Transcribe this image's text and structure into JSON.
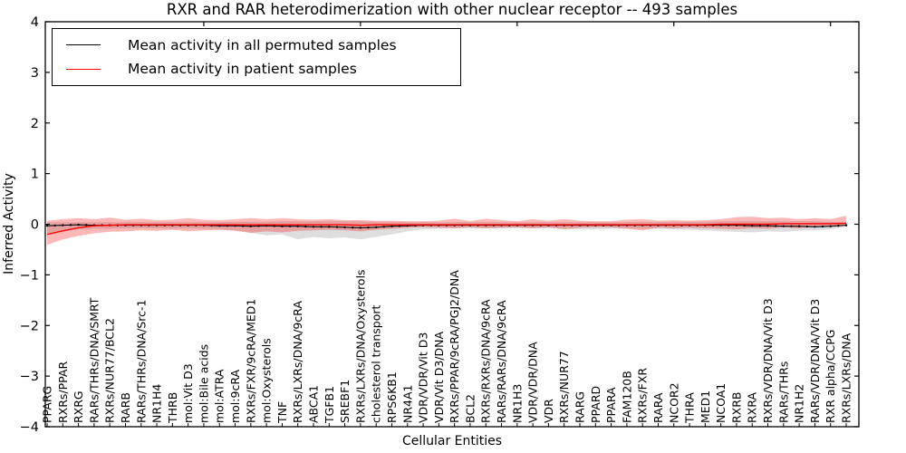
{
  "title": "RXR and RAR heterodimerization with other nuclear receptor -- 493 samples",
  "axes": {
    "xlabel": "Cellular Entities",
    "ylabel": "Inferred Activity"
  },
  "legend": {
    "items": [
      {
        "label": "Mean activity in all permuted samples",
        "color": "#000000"
      },
      {
        "label": "Mean activity in patient samples",
        "color": "#ff0000"
      }
    ]
  },
  "chart_data": {
    "type": "line",
    "title": "RXR and RAR heterodimerization with other nuclear receptor -- 493 samples",
    "xlabel": "Cellular Entities",
    "ylabel": "Inferred Activity",
    "ylim": [
      -4,
      4
    ],
    "yticks": [
      -4,
      -3,
      -2,
      -1,
      0,
      1,
      2,
      3,
      4
    ],
    "grid": false,
    "legend_position": "upper left",
    "categories": [
      "PPARG",
      "RXRs/PPAR",
      "RXRG",
      "RARs/THRs/DNA/SMRT",
      "RXRs/NUR77/BCL2",
      "RARB",
      "RARs/THRs/DNA/Src-1",
      "NR1H4",
      "THRB",
      "mol:Vit D3",
      "mol:Bile acids",
      "mol:ATRA",
      "mol:9cRA",
      "RXRs/FXR/9cRA/MED1",
      "mol:Oxysterols",
      "TNF",
      "RXRs/LXRs/DNA/9cRA",
      "ABCA1",
      "TGFB1",
      "SREBF1",
      "RXRs/LXRs/DNA/Oxysterols",
      "cholesterol transport",
      "RPS6KB1",
      "NR4A1",
      "VDR/VDR/Vit D3",
      "VDR/Vit D3/DNA",
      "RXRs/PPAR/9cRA/PGJ2/DNA",
      "BCL2",
      "RXRs/RXRs/DNA/9cRA",
      "RARs/RARs/DNA/9cRA",
      "NR1H3",
      "VDR/VDR/DNA",
      "VDR",
      "RXRs/NUR77",
      "RARG",
      "PPARD",
      "PPARA",
      "FAM120B",
      "RXRs/FXR",
      "RARA",
      "NCOR2",
      "THRA",
      "MED1",
      "NCOA1",
      "RXRB",
      "RXRA",
      "RXRs/VDR/DNA/Vit D3",
      "RARs/THRs",
      "NR1H2",
      "RARs/VDR/DNA/Vit D3",
      "RXR alpha/CCPG",
      "RXRs/LXRs/DNA"
    ],
    "series": [
      {
        "name": "Mean activity in all permuted samples",
        "color": "#000000",
        "values": [
          -0.03,
          -0.02,
          -0.01,
          -0.02,
          -0.02,
          -0.02,
          -0.02,
          -0.02,
          -0.02,
          -0.02,
          -0.02,
          -0.03,
          -0.03,
          -0.04,
          -0.03,
          -0.04,
          -0.04,
          -0.05,
          -0.05,
          -0.06,
          -0.07,
          -0.06,
          -0.04,
          -0.03,
          -0.02,
          -0.02,
          -0.02,
          -0.02,
          -0.02,
          -0.02,
          -0.02,
          -0.02,
          -0.02,
          -0.02,
          -0.02,
          -0.02,
          -0.02,
          -0.02,
          -0.02,
          -0.02,
          -0.02,
          -0.02,
          -0.02,
          -0.02,
          -0.02,
          -0.03,
          -0.03,
          -0.04,
          -0.04,
          -0.05,
          -0.04,
          -0.02
        ]
      },
      {
        "name": "Mean activity in patient samples",
        "color": "#ff0000",
        "values": [
          -0.2,
          -0.13,
          -0.07,
          -0.03,
          -0.02,
          -0.01,
          -0.01,
          -0.01,
          -0.01,
          -0.01,
          -0.01,
          -0.01,
          -0.01,
          -0.01,
          -0.01,
          -0.01,
          -0.01,
          -0.01,
          -0.01,
          -0.01,
          -0.02,
          -0.01,
          -0.01,
          -0.01,
          -0.01,
          -0.01,
          -0.01,
          -0.01,
          -0.01,
          -0.01,
          -0.01,
          -0.01,
          -0.01,
          -0.01,
          -0.01,
          -0.01,
          -0.01,
          -0.01,
          -0.01,
          -0.01,
          -0.01,
          -0.01,
          -0.01,
          0.0,
          0.0,
          0.0,
          0.0,
          0.01,
          0.01,
          0.01,
          0.01,
          0.02
        ]
      }
    ],
    "bands": [
      {
        "name": "permuted samples range",
        "color": "#999999",
        "opacity": 0.32,
        "lower": [
          -0.18,
          -0.12,
          -0.1,
          -0.09,
          -0.09,
          -0.08,
          -0.08,
          -0.08,
          -0.09,
          -0.08,
          -0.09,
          -0.1,
          -0.12,
          -0.17,
          -0.22,
          -0.2,
          -0.3,
          -0.25,
          -0.28,
          -0.26,
          -0.3,
          -0.25,
          -0.2,
          -0.14,
          -0.1,
          -0.09,
          -0.08,
          -0.08,
          -0.08,
          -0.08,
          -0.08,
          -0.08,
          -0.08,
          -0.09,
          -0.1,
          -0.1,
          -0.09,
          -0.09,
          -0.09,
          -0.09,
          -0.1,
          -0.11,
          -0.12,
          -0.14,
          -0.15,
          -0.16,
          -0.14,
          -0.15,
          -0.13,
          -0.12,
          -0.1,
          -0.05
        ],
        "upper": [
          0.04,
          0.04,
          0.04,
          0.04,
          0.04,
          0.04,
          0.04,
          0.04,
          0.04,
          0.04,
          0.04,
          0.04,
          0.05,
          0.05,
          0.05,
          0.06,
          0.06,
          0.06,
          0.07,
          0.06,
          0.06,
          0.05,
          0.05,
          0.04,
          0.04,
          0.04,
          0.04,
          0.04,
          0.04,
          0.04,
          0.04,
          0.04,
          0.04,
          0.04,
          0.04,
          0.04,
          0.04,
          0.04,
          0.05,
          0.04,
          0.05,
          0.05,
          0.05,
          0.06,
          0.06,
          0.07,
          0.06,
          0.06,
          0.06,
          0.06,
          0.05,
          0.03
        ]
      },
      {
        "name": "patient samples range",
        "color": "#ff0000",
        "opacity": 0.28,
        "lower": [
          -0.41,
          -0.3,
          -0.23,
          -0.18,
          -0.15,
          -0.14,
          -0.12,
          -0.13,
          -0.11,
          -0.14,
          -0.12,
          -0.11,
          -0.13,
          -0.17,
          -0.14,
          -0.16,
          -0.13,
          -0.12,
          -0.11,
          -0.12,
          -0.14,
          -0.11,
          -0.09,
          -0.07,
          -0.06,
          -0.07,
          -0.08,
          -0.06,
          -0.08,
          -0.07,
          -0.06,
          -0.08,
          -0.06,
          -0.1,
          -0.07,
          -0.06,
          -0.06,
          -0.09,
          -0.12,
          -0.07,
          -0.08,
          -0.07,
          -0.08,
          -0.09,
          -0.1,
          -0.08,
          -0.09,
          -0.06,
          -0.08,
          -0.05,
          -0.04,
          -0.02
        ],
        "upper": [
          0.07,
          0.1,
          0.12,
          0.1,
          0.13,
          0.09,
          0.11,
          0.08,
          0.09,
          0.12,
          0.09,
          0.08,
          0.1,
          0.12,
          0.1,
          0.12,
          0.1,
          0.09,
          0.1,
          0.08,
          0.08,
          0.07,
          0.07,
          0.06,
          0.06,
          0.07,
          0.11,
          0.06,
          0.11,
          0.08,
          0.06,
          0.1,
          0.07,
          0.1,
          0.07,
          0.06,
          0.06,
          0.09,
          0.1,
          0.07,
          0.08,
          0.07,
          0.08,
          0.1,
          0.14,
          0.15,
          0.12,
          0.13,
          0.1,
          0.12,
          0.1,
          0.17
        ]
      }
    ]
  }
}
